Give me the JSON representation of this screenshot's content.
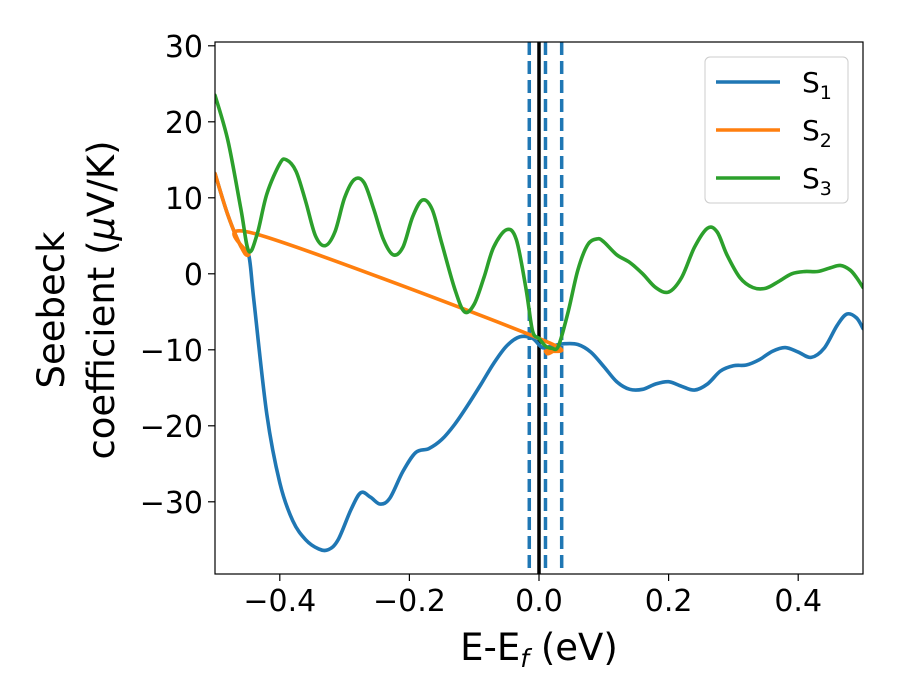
{
  "chart_data": {
    "type": "line",
    "xlabel": {
      "main": "E-E",
      "sub": "f",
      "suffix": " (eV)"
    },
    "ylabel": {
      "line1": "Seebeck",
      "line2": "coefficient  (",
      "mu": "μ",
      "line2_suffix": "V/K)"
    },
    "xlim": [
      -0.5,
      0.5
    ],
    "ylim": [
      -39.5,
      30.5
    ],
    "x_ticks": [
      {
        "value": -0.4,
        "label": "−0.4"
      },
      {
        "value": -0.2,
        "label": "−0.2"
      },
      {
        "value": 0.0,
        "label": "0.0"
      },
      {
        "value": 0.2,
        "label": "0.2"
      },
      {
        "value": 0.4,
        "label": "0.4"
      }
    ],
    "y_ticks": [
      {
        "value": 30,
        "label": "30"
      },
      {
        "value": 20,
        "label": "20"
      },
      {
        "value": 10,
        "label": "10"
      },
      {
        "value": 0,
        "label": "0"
      },
      {
        "value": -10,
        "label": "−10"
      },
      {
        "value": -20,
        "label": "−20"
      },
      {
        "value": -30,
        "label": "−30"
      }
    ],
    "grid": false,
    "legend_position": "top-right",
    "vertical_lines": [
      {
        "x": 0.0,
        "style": "solid",
        "color": "#000000"
      },
      {
        "x": -0.015,
        "style": "dashed",
        "color": "#1f77b4"
      },
      {
        "x": 0.01,
        "style": "dashed",
        "color": "#1f77b4"
      },
      {
        "x": 0.035,
        "style": "dashed",
        "color": "#1f77b4"
      }
    ],
    "series": [
      {
        "name": "S",
        "name_sub": "1",
        "color": "#1f77b4",
        "points": [
          [
            -0.5,
            13.2
          ],
          [
            -0.48,
            7.7
          ],
          [
            -0.46,
            3.6
          ],
          [
            -0.448,
            2.5
          ],
          [
            -0.44,
            -3.5
          ],
          [
            -0.42,
            -18.5
          ],
          [
            -0.4,
            -27.5
          ],
          [
            -0.38,
            -32.5
          ],
          [
            -0.36,
            -35.0
          ],
          [
            -0.34,
            -36.2
          ],
          [
            -0.325,
            -36.3
          ],
          [
            -0.31,
            -35.0
          ],
          [
            -0.29,
            -31.0
          ],
          [
            -0.275,
            -28.8
          ],
          [
            -0.26,
            -29.4
          ],
          [
            -0.245,
            -30.3
          ],
          [
            -0.23,
            -29.5
          ],
          [
            -0.21,
            -26.0
          ],
          [
            -0.19,
            -23.5
          ],
          [
            -0.17,
            -23.0
          ],
          [
            -0.15,
            -21.8
          ],
          [
            -0.13,
            -19.8
          ],
          [
            -0.11,
            -17.3
          ],
          [
            -0.09,
            -14.6
          ],
          [
            -0.07,
            -11.8
          ],
          [
            -0.05,
            -9.5
          ],
          [
            -0.03,
            -8.3
          ],
          [
            -0.01,
            -8.5
          ],
          [
            0.005,
            -9.7
          ],
          [
            0.02,
            -9.5
          ],
          [
            0.04,
            -9.2
          ],
          [
            0.06,
            -9.3
          ],
          [
            0.08,
            -10.3
          ],
          [
            0.1,
            -12.2
          ],
          [
            0.12,
            -14.2
          ],
          [
            0.14,
            -15.2
          ],
          [
            0.16,
            -15.2
          ],
          [
            0.18,
            -14.5
          ],
          [
            0.2,
            -14.2
          ],
          [
            0.22,
            -14.8
          ],
          [
            0.24,
            -15.3
          ],
          [
            0.26,
            -14.5
          ],
          [
            0.28,
            -12.8
          ],
          [
            0.3,
            -12.1
          ],
          [
            0.32,
            -12.0
          ],
          [
            0.34,
            -11.3
          ],
          [
            0.36,
            -10.2
          ],
          [
            0.38,
            -9.7
          ],
          [
            0.4,
            -10.3
          ],
          [
            0.42,
            -11.0
          ],
          [
            0.44,
            -9.8
          ],
          [
            0.46,
            -6.8
          ],
          [
            0.475,
            -5.3
          ],
          [
            0.49,
            -5.8
          ],
          [
            0.5,
            -7.2
          ]
        ]
      },
      {
        "name": "S",
        "name_sub": "2",
        "color": "#ff7f0e",
        "points": [
          [
            -0.5,
            13.2
          ],
          [
            -0.48,
            7.7
          ],
          [
            -0.46,
            3.6
          ],
          [
            -0.448,
            2.5
          ],
          [
            -0.435,
            5.2
          ],
          [
            0.0,
            -8.5
          ],
          [
            0.01,
            -10.2
          ],
          [
            0.015,
            -10.5
          ],
          [
            0.025,
            -10.0
          ]
        ]
      },
      {
        "name": "S",
        "name_sub": "3",
        "color": "#2ca02c",
        "points": [
          [
            -0.5,
            23.5
          ],
          [
            -0.48,
            17.5
          ],
          [
            -0.46,
            8.5
          ],
          [
            -0.448,
            3.0
          ],
          [
            -0.435,
            5.2
          ],
          [
            -0.42,
            10.5
          ],
          [
            -0.4,
            14.5
          ],
          [
            -0.39,
            15.0
          ],
          [
            -0.375,
            13.5
          ],
          [
            -0.36,
            9.5
          ],
          [
            -0.345,
            5.0
          ],
          [
            -0.33,
            3.7
          ],
          [
            -0.315,
            5.5
          ],
          [
            -0.3,
            10.0
          ],
          [
            -0.285,
            12.4
          ],
          [
            -0.27,
            12.0
          ],
          [
            -0.255,
            8.5
          ],
          [
            -0.24,
            4.5
          ],
          [
            -0.225,
            2.5
          ],
          [
            -0.21,
            3.5
          ],
          [
            -0.195,
            7.5
          ],
          [
            -0.18,
            9.7
          ],
          [
            -0.165,
            8.5
          ],
          [
            -0.15,
            4.0
          ],
          [
            -0.13,
            -2.0
          ],
          [
            -0.115,
            -5.0
          ],
          [
            -0.1,
            -4.0
          ],
          [
            -0.085,
            -0.5
          ],
          [
            -0.07,
            3.5
          ],
          [
            -0.05,
            5.8
          ],
          [
            -0.035,
            4.5
          ],
          [
            -0.02,
            -2.0
          ],
          [
            -0.01,
            -7.5
          ],
          [
            0.0,
            -8.5
          ],
          [
            0.01,
            -9.5
          ],
          [
            0.02,
            -9.8
          ],
          [
            0.03,
            -9.5
          ],
          [
            0.045,
            -5.0
          ],
          [
            0.06,
            0.5
          ],
          [
            0.075,
            3.8
          ],
          [
            0.09,
            4.6
          ],
          [
            0.1,
            4.2
          ],
          [
            0.12,
            2.5
          ],
          [
            0.14,
            1.5
          ],
          [
            0.16,
            0.0
          ],
          [
            0.18,
            -1.8
          ],
          [
            0.2,
            -2.4
          ],
          [
            0.22,
            -0.5
          ],
          [
            0.24,
            3.5
          ],
          [
            0.26,
            6.0
          ],
          [
            0.275,
            5.5
          ],
          [
            0.29,
            2.5
          ],
          [
            0.31,
            -0.5
          ],
          [
            0.33,
            -1.8
          ],
          [
            0.35,
            -1.9
          ],
          [
            0.37,
            -1.0
          ],
          [
            0.39,
            0.0
          ],
          [
            0.41,
            0.3
          ],
          [
            0.43,
            0.3
          ],
          [
            0.45,
            0.8
          ],
          [
            0.465,
            1.1
          ],
          [
            0.48,
            0.5
          ],
          [
            0.49,
            -0.5
          ],
          [
            0.5,
            -1.8
          ]
        ]
      }
    ]
  }
}
